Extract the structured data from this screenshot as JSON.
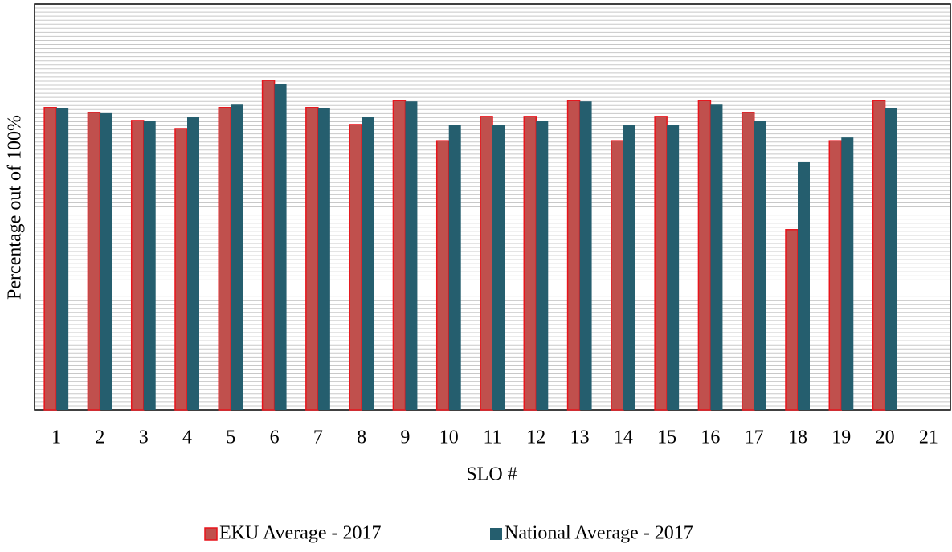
{
  "chart_data": {
    "type": "bar",
    "x_label": "SLO #",
    "y_label": "Percentage out of 100%",
    "categories": [
      "1",
      "2",
      "3",
      "4",
      "5",
      "6",
      "7",
      "8",
      "9",
      "10",
      "11",
      "12",
      "13",
      "14",
      "15",
      "16",
      "17",
      "18",
      "19",
      "20",
      "21"
    ],
    "series": [
      {
        "name": "EKU Average - 2017",
        "color": "#c0504d",
        "edge_color": "#e8141b",
        "values": [
          74.5,
          73.3,
          71.3,
          69.3,
          74.5,
          81.2,
          74.5,
          70.3,
          76.2,
          66.3,
          72.3,
          72.3,
          76.2,
          66.3,
          72.3,
          76.2,
          73.3,
          44.4,
          66.3,
          76.2,
          null
        ]
      },
      {
        "name": "National Average - 2017",
        "color": "#255e6e",
        "values": [
          74.3,
          73.1,
          71.1,
          72.1,
          75.2,
          80.2,
          74.3,
          72.1,
          76.0,
          70.1,
          70.1,
          71.1,
          76.0,
          70.1,
          70.1,
          75.2,
          71.1,
          61.2,
          67.1,
          74.3,
          null
        ]
      }
    ],
    "ylim": [
      0,
      100
    ],
    "grid": true,
    "legend": "bottom"
  }
}
